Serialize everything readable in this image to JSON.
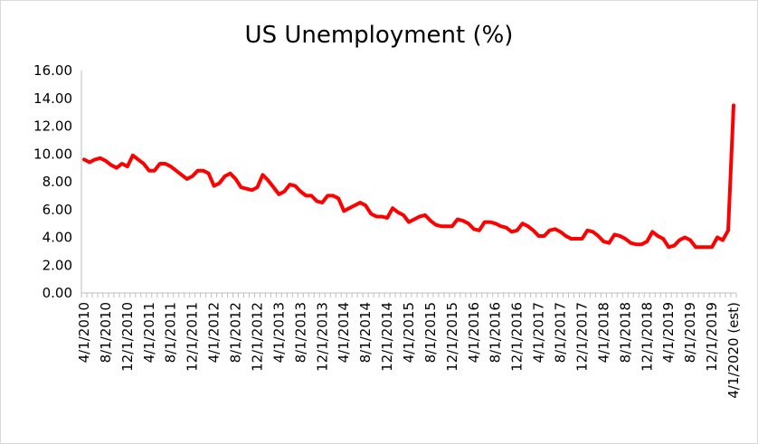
{
  "chart_data": {
    "type": "line",
    "title": "US Unemployment (%)",
    "xlabel": "",
    "ylabel": "",
    "ylim": [
      0,
      16
    ],
    "y_ticks": [
      "0.00",
      "2.00",
      "4.00",
      "6.00",
      "8.00",
      "10.00",
      "12.00",
      "14.00",
      "16.00"
    ],
    "x_tick_labels": [
      "4/1/2010",
      "8/1/2010",
      "12/1/2010",
      "4/1/2011",
      "8/1/2011",
      "12/1/2011",
      "4/1/2012",
      "8/1/2012",
      "12/1/2012",
      "4/1/2013",
      "8/1/2013",
      "12/1/2013",
      "4/1/2014",
      "8/1/2014",
      "12/1/2014",
      "4/1/2015",
      "8/1/2015",
      "12/1/2015",
      "4/1/2016",
      "8/1/2016",
      "12/1/2016",
      "4/1/2017",
      "8/1/2017",
      "12/1/2017",
      "4/1/2018",
      "8/1/2018",
      "12/1/2018",
      "4/1/2019",
      "8/1/2019",
      "12/1/2019",
      "4/1/2020 (est)"
    ],
    "grid": false,
    "legend": "none",
    "line_color": "#ff0000",
    "series": [
      {
        "values": [
          9.6,
          9.4,
          9.6,
          9.7,
          9.5,
          9.2,
          9.0,
          9.3,
          9.1,
          9.9,
          9.6,
          9.3,
          8.8,
          8.8,
          9.3,
          9.3,
          9.1,
          8.8,
          8.5,
          8.2,
          8.4,
          8.8,
          8.8,
          8.6,
          7.7,
          7.9,
          8.4,
          8.6,
          8.2,
          7.6,
          7.5,
          7.4,
          7.6,
          8.5,
          8.1,
          7.6,
          7.1,
          7.3,
          7.8,
          7.7,
          7.3,
          7.0,
          7.0,
          6.6,
          6.5,
          7.0,
          7.0,
          6.8,
          5.9,
          6.1,
          6.3,
          6.5,
          6.3,
          5.7,
          5.5,
          5.5,
          5.4,
          6.1,
          5.8,
          5.6,
          5.1,
          5.3,
          5.5,
          5.6,
          5.2,
          4.9,
          4.8,
          4.8,
          4.8,
          5.3,
          5.2,
          5.0,
          4.6,
          4.5,
          5.1,
          5.1,
          5.0,
          4.8,
          4.7,
          4.4,
          4.5,
          5.0,
          4.8,
          4.5,
          4.1,
          4.1,
          4.5,
          4.6,
          4.4,
          4.1,
          3.9,
          3.9,
          3.9,
          4.5,
          4.4,
          4.1,
          3.7,
          3.6,
          4.2,
          4.1,
          3.9,
          3.6,
          3.5,
          3.5,
          3.7,
          4.4,
          4.1,
          3.9,
          3.3,
          3.4,
          3.8,
          4.0,
          3.8,
          3.3,
          3.3,
          3.3,
          3.3,
          4.0,
          3.8,
          4.5,
          13.5
        ]
      }
    ]
  }
}
